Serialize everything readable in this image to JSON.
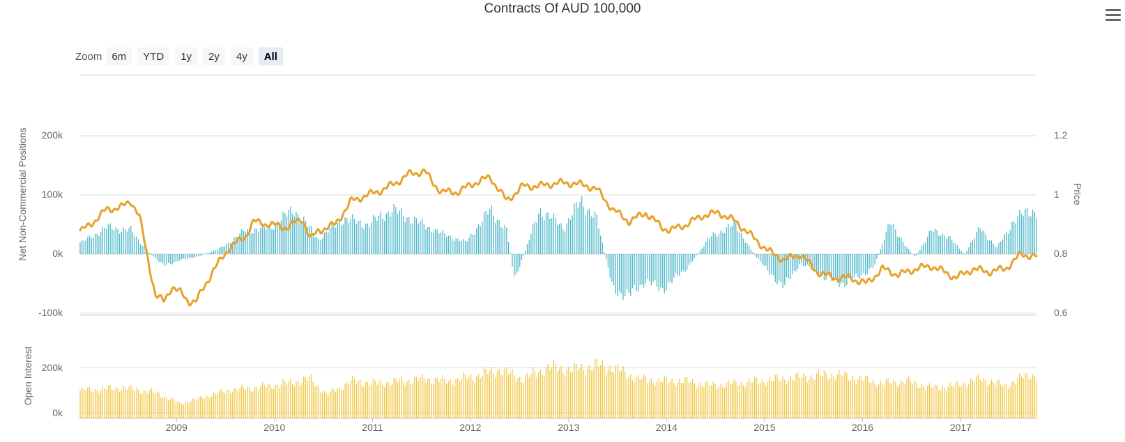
{
  "title": "Contracts Of AUD 100,000",
  "zoom": {
    "label": "Zoom",
    "buttons": [
      "6m",
      "YTD",
      "1y",
      "2y",
      "4y",
      "All"
    ],
    "selected": "All"
  },
  "menu_icon": "hamburger-menu-icon",
  "colors": {
    "net_bars": "#4fb7c9",
    "price_line": "#e8a12a",
    "open_interest_bars": "#f2c744",
    "grid": "#d8d8d8",
    "text": "#666666"
  },
  "chart_data": [
    {
      "type": "bar",
      "panel": "top",
      "ylabel": "Net Non-Commercial Positions",
      "ylim": [
        -100000,
        200000
      ],
      "yticks": [
        -100000,
        0,
        100000,
        200000
      ],
      "ytick_labels": [
        "-100k",
        "0k",
        "100k",
        "200k"
      ],
      "grid": true,
      "series": [
        {
          "kind": "weekly_bars",
          "x": [
            "2008-01",
            "2008-04",
            "2008-07",
            "2008-09",
            "2008-11",
            "2009-01",
            "2009-03",
            "2009-06",
            "2009-09",
            "2009-12",
            "2010-03",
            "2010-06",
            "2010-09",
            "2010-12",
            "2011-03",
            "2011-06",
            "2011-09",
            "2011-12",
            "2012-03",
            "2012-05",
            "2012-06",
            "2012-09",
            "2012-12",
            "2013-02",
            "2013-04",
            "2013-06",
            "2013-08",
            "2013-10",
            "2013-12",
            "2014-03",
            "2014-06",
            "2014-09",
            "2014-11",
            "2015-01",
            "2015-03",
            "2015-05",
            "2015-08",
            "2015-10",
            "2015-12",
            "2016-02",
            "2016-04",
            "2016-06",
            "2016-07",
            "2016-09",
            "2016-11",
            "2017-01",
            "2017-03",
            "2017-05",
            "2017-07",
            "2017-09",
            "2017-10"
          ],
          "values": [
            20000,
            45000,
            40000,
            5000,
            -20000,
            -10000,
            -5000,
            10000,
            40000,
            45000,
            75000,
            25000,
            60000,
            50000,
            75000,
            55000,
            35000,
            20000,
            75000,
            40000,
            -45000,
            75000,
            45000,
            90000,
            60000,
            -60000,
            -70000,
            -45000,
            -60000,
            -25000,
            30000,
            50000,
            5000,
            -30000,
            -55000,
            -15000,
            -40000,
            -50000,
            -40000,
            -20000,
            55000,
            10000,
            -5000,
            40000,
            30000,
            0,
            45000,
            10000,
            55000,
            75000,
            70000
          ]
        },
        {
          "name": "Price",
          "axis": "right",
          "kind": "line",
          "ylim": [
            0.6,
            1.2
          ],
          "yticks": [
            0.6,
            0.8,
            1,
            1.2
          ],
          "ylabel": "Price",
          "x": [
            "2008-01",
            "2008-02",
            "2008-04",
            "2008-06",
            "2008-07",
            "2008-08",
            "2008-09",
            "2008-10",
            "2008-11",
            "2008-12",
            "2009-01",
            "2009-02",
            "2009-03",
            "2009-05",
            "2009-07",
            "2009-09",
            "2009-10",
            "2009-12",
            "2010-02",
            "2010-04",
            "2010-05",
            "2010-06",
            "2010-08",
            "2010-10",
            "2010-12",
            "2011-02",
            "2011-04",
            "2011-05",
            "2011-07",
            "2011-08",
            "2011-09",
            "2011-11",
            "2012-01",
            "2012-03",
            "2012-05",
            "2012-07",
            "2012-09",
            "2012-11",
            "2013-01",
            "2013-03",
            "2013-04",
            "2013-06",
            "2013-08",
            "2013-10",
            "2013-12",
            "2014-01",
            "2014-03",
            "2014-05",
            "2014-07",
            "2014-09",
            "2014-11",
            "2015-01",
            "2015-03",
            "2015-05",
            "2015-07",
            "2015-09",
            "2015-11",
            "2016-01",
            "2016-03",
            "2016-05",
            "2016-07",
            "2016-09",
            "2016-12",
            "2017-02",
            "2017-04",
            "2017-06",
            "2017-08",
            "2017-10"
          ],
          "values": [
            0.88,
            0.9,
            0.95,
            0.96,
            0.98,
            0.93,
            0.79,
            0.66,
            0.64,
            0.69,
            0.67,
            0.64,
            0.64,
            0.74,
            0.82,
            0.86,
            0.91,
            0.9,
            0.89,
            0.92,
            0.85,
            0.88,
            0.9,
            0.98,
            1.0,
            1.02,
            1.05,
            1.07,
            1.08,
            1.04,
            1.01,
            1.01,
            1.04,
            1.06,
            0.98,
            1.03,
            1.03,
            1.04,
            1.04,
            1.03,
            1.02,
            0.95,
            0.91,
            0.94,
            0.89,
            0.88,
            0.9,
            0.93,
            0.94,
            0.91,
            0.86,
            0.81,
            0.78,
            0.8,
            0.74,
            0.72,
            0.72,
            0.7,
            0.75,
            0.73,
            0.75,
            0.76,
            0.72,
            0.75,
            0.74,
            0.75,
            0.8,
            0.79
          ]
        }
      ]
    },
    {
      "type": "bar",
      "panel": "bottom",
      "ylabel": "Open Interest",
      "ylim": [
        0,
        200000
      ],
      "yticks": [
        0,
        200000
      ],
      "ytick_labels": [
        "0k",
        "200k"
      ],
      "xticks": [
        "2009",
        "2010",
        "2011",
        "2012",
        "2013",
        "2014",
        "2015",
        "2016",
        "2017"
      ],
      "series": [
        {
          "name": "Open Interest",
          "kind": "weekly_bars",
          "x": [
            "2008-01",
            "2008-06",
            "2008-10",
            "2009-01",
            "2009-04",
            "2009-07",
            "2009-10",
            "2010-02",
            "2010-05",
            "2010-07",
            "2010-10",
            "2011-01",
            "2011-04",
            "2011-07",
            "2011-10",
            "2012-01",
            "2012-04",
            "2012-07",
            "2012-10",
            "2013-01",
            "2013-04",
            "2013-06",
            "2013-09",
            "2013-12",
            "2014-03",
            "2014-06",
            "2014-09",
            "2014-12",
            "2015-03",
            "2015-06",
            "2015-09",
            "2015-12",
            "2016-03",
            "2016-06",
            "2016-09",
            "2016-12",
            "2017-03",
            "2017-06",
            "2017-09",
            "2017-10"
          ],
          "values": [
            100000,
            110000,
            90000,
            40000,
            70000,
            100000,
            110000,
            130000,
            150000,
            80000,
            140000,
            130000,
            140000,
            150000,
            140000,
            160000,
            190000,
            150000,
            200000,
            190000,
            210000,
            200000,
            150000,
            140000,
            140000,
            120000,
            130000,
            140000,
            150000,
            160000,
            170000,
            150000,
            130000,
            140000,
            110000,
            120000,
            150000,
            120000,
            170000,
            160000
          ]
        }
      ]
    }
  ]
}
